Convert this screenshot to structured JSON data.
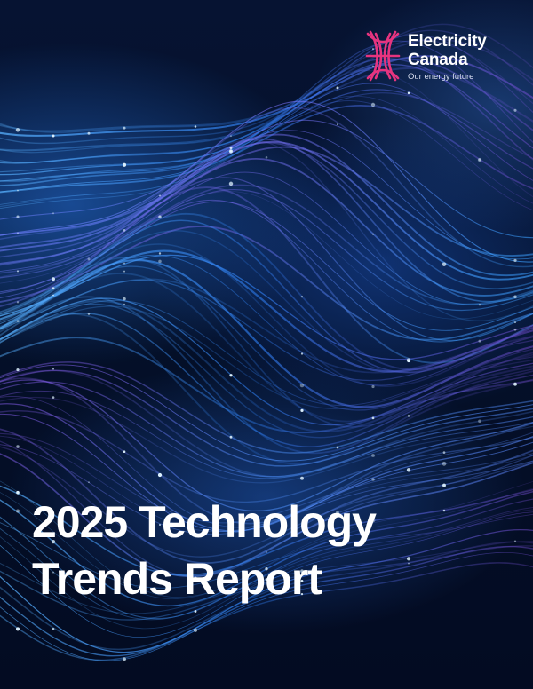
{
  "logo": {
    "name_line1": "Electricity",
    "name_line2": "Canada",
    "tagline": "Our energy future",
    "brand_color": "#e6347f"
  },
  "title": {
    "line1": "2025 Technology",
    "line2": "Trends Report"
  },
  "background": {
    "description_colors": [
      "#061332",
      "#1e6fe0",
      "#5ab4ff",
      "#7a4fd8"
    ]
  }
}
